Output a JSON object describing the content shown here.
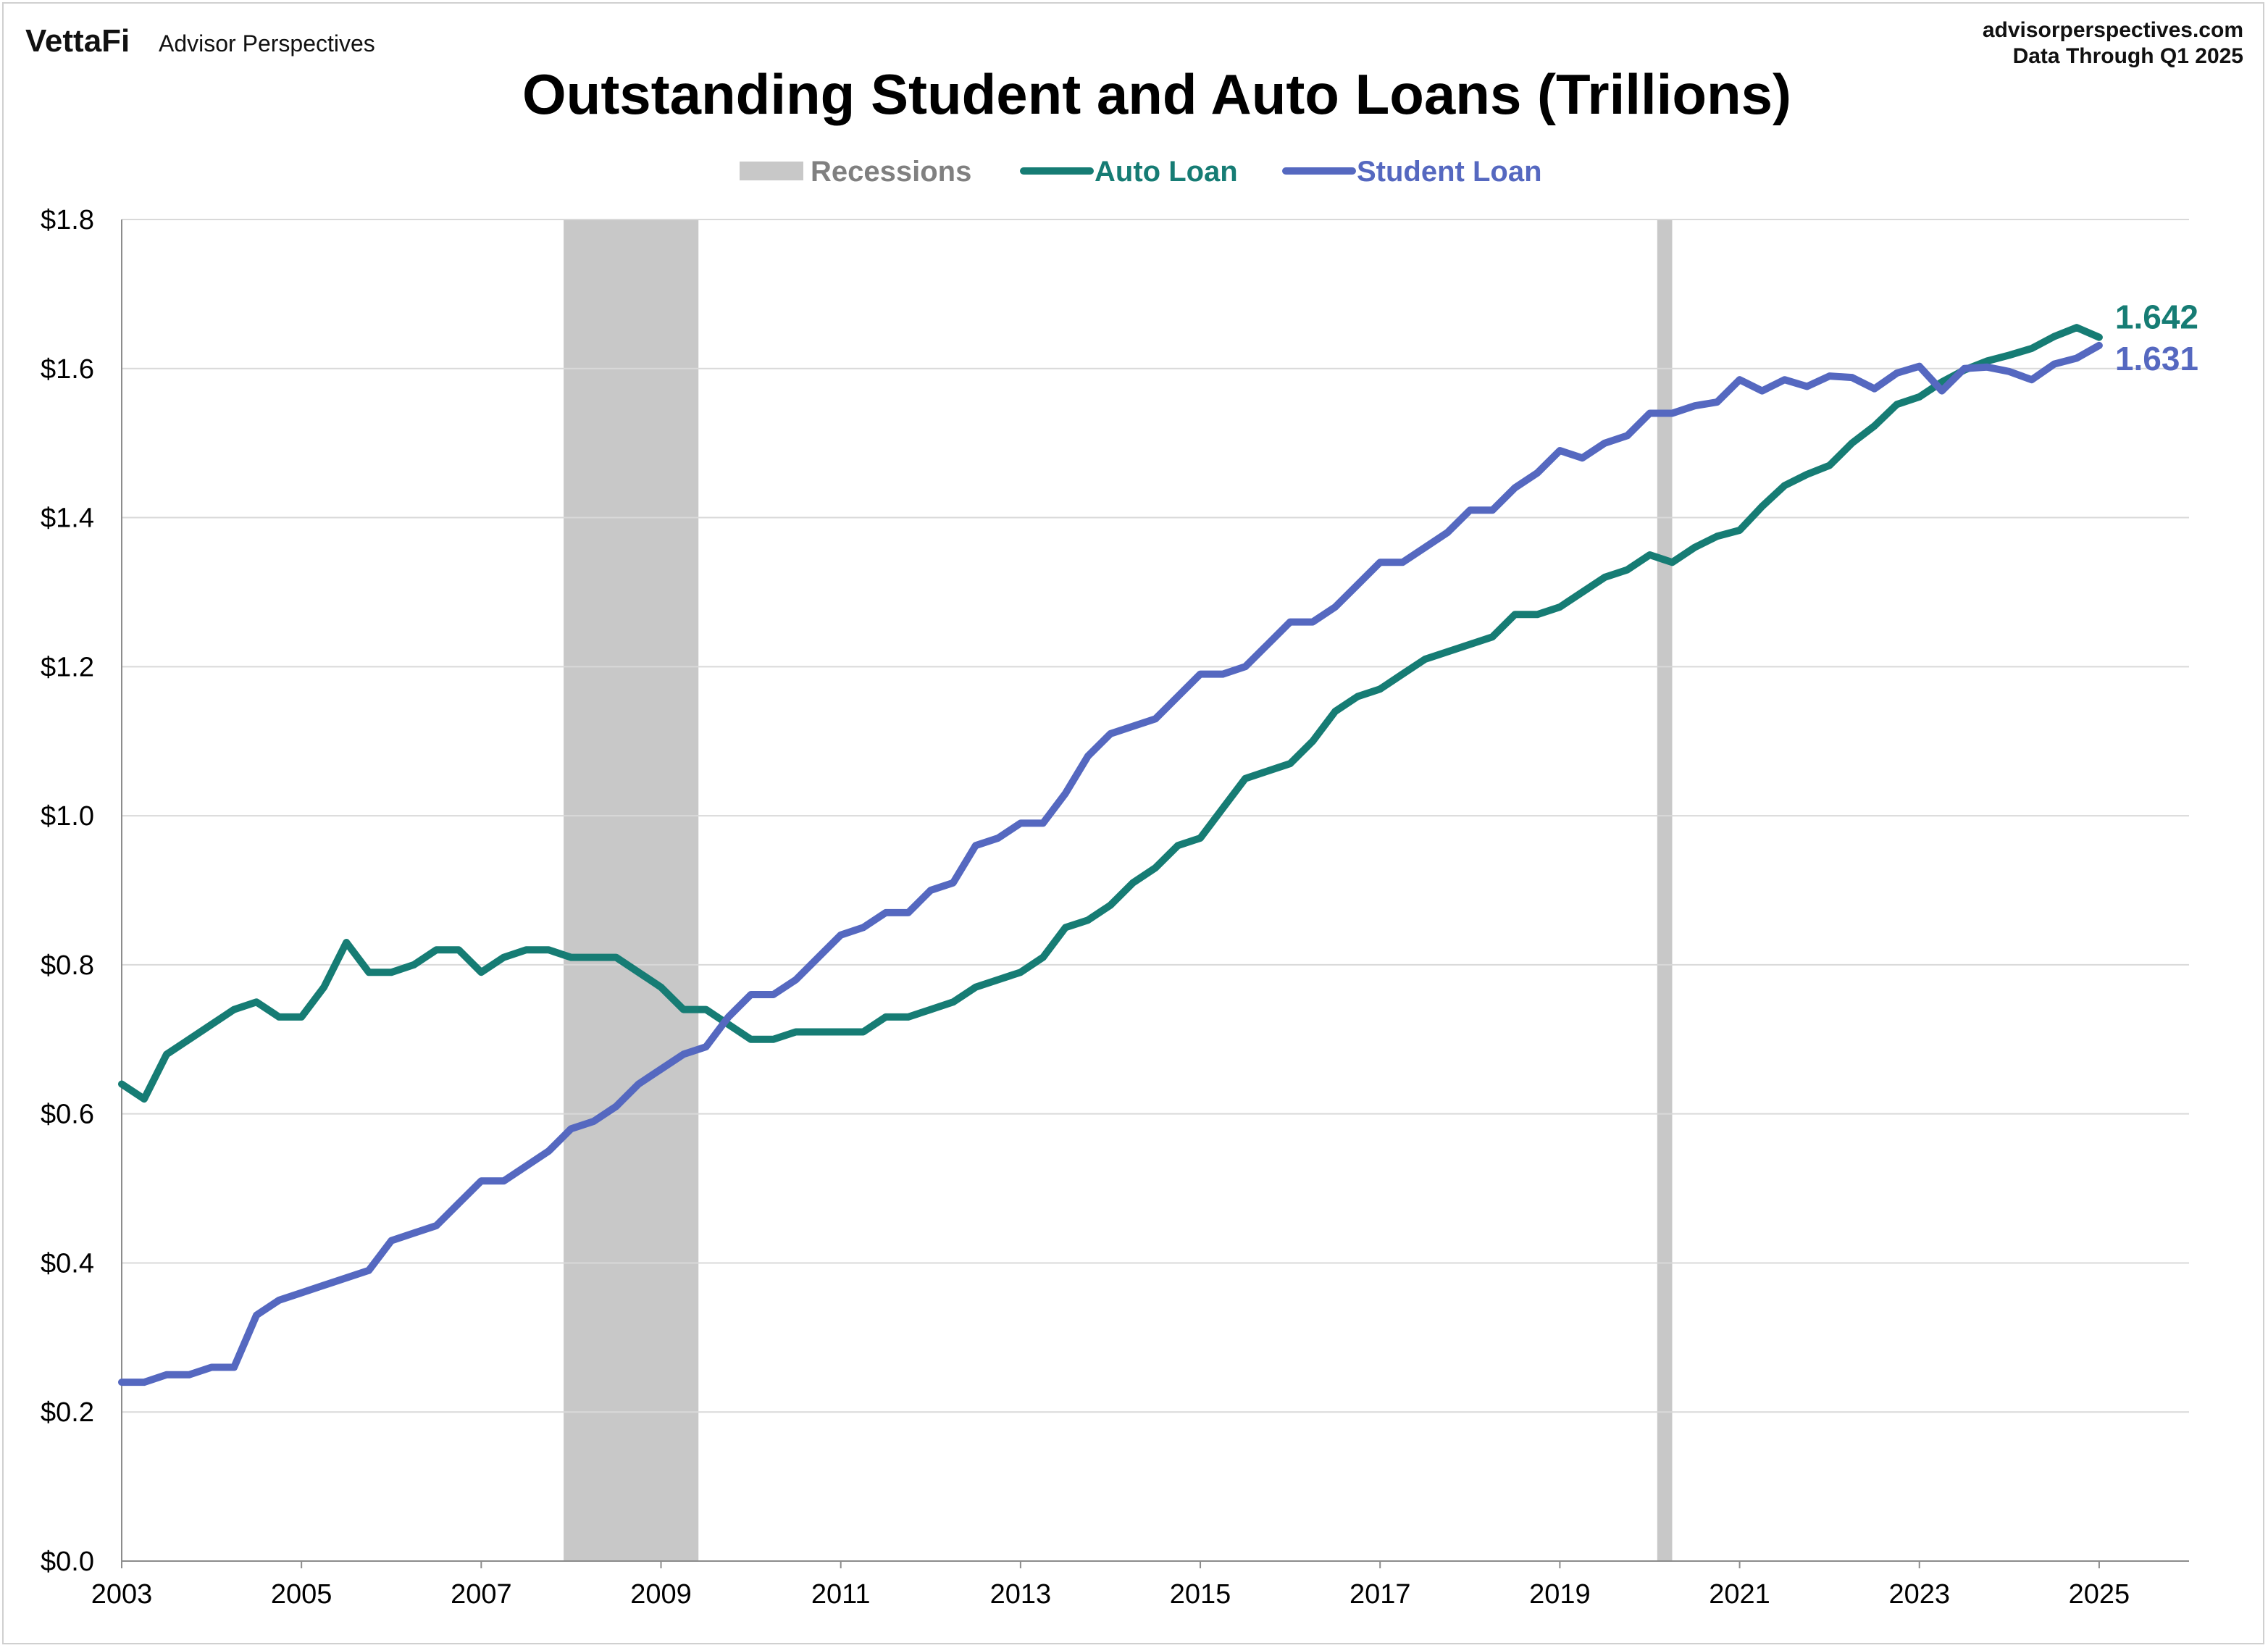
{
  "branding": {
    "logo_text": "VettaFi",
    "name": "Advisor Perspectives",
    "site": "advisorperspectives.com",
    "data_through": "Data Through Q1 2025"
  },
  "colors": {
    "auto": "#167C74",
    "student": "#5568C0",
    "recession": "#C8C8C8",
    "grid": "#D9D9D9"
  },
  "chart_data": {
    "type": "line",
    "title": "Outstanding Student and Auto Loans (Trillions)",
    "xlabel": "",
    "ylabel": "",
    "xlim": [
      2003,
      2026
    ],
    "ylim": [
      0,
      1.8
    ],
    "grid": true,
    "legend_position": "top-center",
    "legend": [
      "Recessions",
      "Auto Loan",
      "Student Loan"
    ],
    "x_tick_labels": [
      "2003",
      "2005",
      "2007",
      "2009",
      "2011",
      "2013",
      "2015",
      "2017",
      "2019",
      "2021",
      "2023",
      "2025"
    ],
    "y_tick_labels": [
      "$0.0",
      "$0.2",
      "$0.4",
      "$0.6",
      "$0.8",
      "$1.0",
      "$1.2",
      "$1.4",
      "$1.6",
      "$1.8"
    ],
    "y_ticks": [
      0,
      0.2,
      0.4,
      0.6,
      0.8,
      1.0,
      1.2,
      1.4,
      1.6,
      1.8
    ],
    "recessions": [
      {
        "start": "2007-12",
        "end": "2009-06"
      },
      {
        "start": "2020-02",
        "end": "2020-04"
      }
    ],
    "x_quarters": [
      "2003 Q1",
      "2003 Q2",
      "2003 Q3",
      "2003 Q4",
      "2004 Q1",
      "2004 Q2",
      "2004 Q3",
      "2004 Q4",
      "2005 Q1",
      "2005 Q2",
      "2005 Q3",
      "2005 Q4",
      "2006 Q1",
      "2006 Q2",
      "2006 Q3",
      "2006 Q4",
      "2007 Q1",
      "2007 Q2",
      "2007 Q3",
      "2007 Q4",
      "2008 Q1",
      "2008 Q2",
      "2008 Q3",
      "2008 Q4",
      "2009 Q1",
      "2009 Q2",
      "2009 Q3",
      "2009 Q4",
      "2010 Q1",
      "2010 Q2",
      "2010 Q3",
      "2010 Q4",
      "2011 Q1",
      "2011 Q2",
      "2011 Q3",
      "2011 Q4",
      "2012 Q1",
      "2012 Q2",
      "2012 Q3",
      "2012 Q4",
      "2013 Q1",
      "2013 Q2",
      "2013 Q3",
      "2013 Q4",
      "2014 Q1",
      "2014 Q2",
      "2014 Q3",
      "2014 Q4",
      "2015 Q1",
      "2015 Q2",
      "2015 Q3",
      "2015 Q4",
      "2016 Q1",
      "2016 Q2",
      "2016 Q3",
      "2016 Q4",
      "2017 Q1",
      "2017 Q2",
      "2017 Q3",
      "2017 Q4",
      "2018 Q1",
      "2018 Q2",
      "2018 Q3",
      "2018 Q4",
      "2019 Q1",
      "2019 Q2",
      "2019 Q3",
      "2019 Q4",
      "2020 Q1",
      "2020 Q2",
      "2020 Q3",
      "2020 Q4",
      "2021 Q1",
      "2021 Q2",
      "2021 Q3",
      "2021 Q4",
      "2022 Q1",
      "2022 Q2",
      "2022 Q3",
      "2022 Q4",
      "2023 Q1",
      "2023 Q2",
      "2023 Q3",
      "2023 Q4",
      "2024 Q1",
      "2024 Q2",
      "2024 Q3",
      "2024 Q4",
      "2025 Q1"
    ],
    "series": [
      {
        "name": "Auto Loan",
        "color": "#167C74",
        "end_label": "1.642",
        "values": [
          0.64,
          0.62,
          0.68,
          0.7,
          0.72,
          0.74,
          0.75,
          0.73,
          0.73,
          0.77,
          0.83,
          0.79,
          0.79,
          0.8,
          0.82,
          0.82,
          0.79,
          0.81,
          0.82,
          0.82,
          0.81,
          0.81,
          0.81,
          0.79,
          0.77,
          0.74,
          0.74,
          0.72,
          0.7,
          0.7,
          0.71,
          0.71,
          0.71,
          0.71,
          0.73,
          0.73,
          0.74,
          0.75,
          0.77,
          0.78,
          0.79,
          0.81,
          0.85,
          0.86,
          0.88,
          0.91,
          0.93,
          0.96,
          0.97,
          1.01,
          1.05,
          1.06,
          1.07,
          1.1,
          1.14,
          1.16,
          1.17,
          1.19,
          1.21,
          1.22,
          1.23,
          1.24,
          1.27,
          1.27,
          1.28,
          1.3,
          1.32,
          1.33,
          1.35,
          1.34,
          1.36,
          1.375,
          1.383,
          1.415,
          1.443,
          1.458,
          1.47,
          1.5,
          1.523,
          1.552,
          1.562,
          1.582,
          1.598,
          1.61,
          1.618,
          1.627,
          1.643,
          1.655,
          1.642
        ]
      },
      {
        "name": "Student Loan",
        "color": "#5568C0",
        "end_label": "1.631",
        "values": [
          0.24,
          0.24,
          0.25,
          0.25,
          0.26,
          0.26,
          0.33,
          0.35,
          0.36,
          0.37,
          0.38,
          0.39,
          0.43,
          0.44,
          0.45,
          0.48,
          0.51,
          0.51,
          0.53,
          0.55,
          0.58,
          0.59,
          0.61,
          0.64,
          0.66,
          0.68,
          0.69,
          0.73,
          0.76,
          0.76,
          0.78,
          0.81,
          0.84,
          0.85,
          0.87,
          0.87,
          0.9,
          0.91,
          0.96,
          0.97,
          0.99,
          0.99,
          1.03,
          1.08,
          1.11,
          1.12,
          1.13,
          1.16,
          1.19,
          1.19,
          1.2,
          1.23,
          1.26,
          1.26,
          1.28,
          1.31,
          1.34,
          1.34,
          1.36,
          1.38,
          1.41,
          1.41,
          1.44,
          1.46,
          1.49,
          1.48,
          1.5,
          1.51,
          1.54,
          1.54,
          1.55,
          1.555,
          1.585,
          1.57,
          1.585,
          1.576,
          1.59,
          1.588,
          1.573,
          1.594,
          1.603,
          1.57,
          1.6,
          1.602,
          1.596,
          1.585,
          1.606,
          1.614,
          1.631
        ]
      }
    ]
  }
}
